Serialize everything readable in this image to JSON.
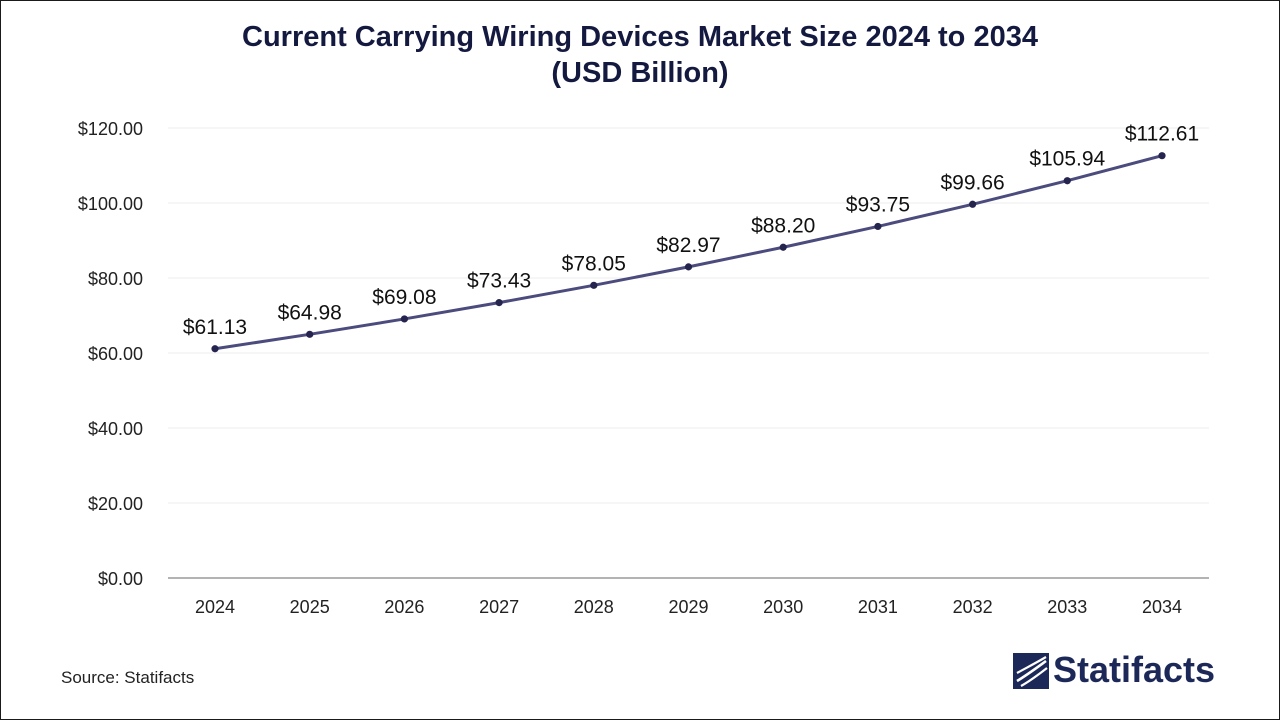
{
  "chart_data": {
    "type": "line",
    "title_line1": "Current Carrying Wiring Devices Market Size 2024 to 2034",
    "title_line2": "(USD Billion)",
    "xlabel": "",
    "ylabel": "",
    "categories": [
      "2024",
      "2025",
      "2026",
      "2027",
      "2028",
      "2029",
      "2030",
      "2031",
      "2032",
      "2033",
      "2034"
    ],
    "series": [
      {
        "name": "Market Size (USD Billion)",
        "values": [
          61.13,
          64.98,
          69.08,
          73.43,
          78.05,
          82.97,
          88.2,
          93.75,
          99.66,
          105.94,
          112.61
        ],
        "labels": [
          "$61.13",
          "$64.98",
          "$69.08",
          "$73.43",
          "$78.05",
          "$82.97",
          "$88.20",
          "$93.75",
          "$99.66",
          "$105.94",
          "$112.61"
        ]
      }
    ],
    "yticks": [
      0,
      20,
      40,
      60,
      80,
      100,
      120
    ],
    "ytick_labels": [
      "$0.00",
      "$20.00",
      "$40.00",
      "$60.00",
      "$80.00",
      "$100.00",
      "$120.00"
    ],
    "ylim": [
      0,
      120
    ],
    "grid": true,
    "legend": "none"
  },
  "colors": {
    "line": "#4b4b7d",
    "marker": "#24244f",
    "title": "#14193f",
    "grid": "#ececec",
    "axis": "#9a9a9a",
    "logo": "#1c2858"
  },
  "footer": {
    "source": "Source: Statifacts",
    "brand": "Statifacts"
  }
}
